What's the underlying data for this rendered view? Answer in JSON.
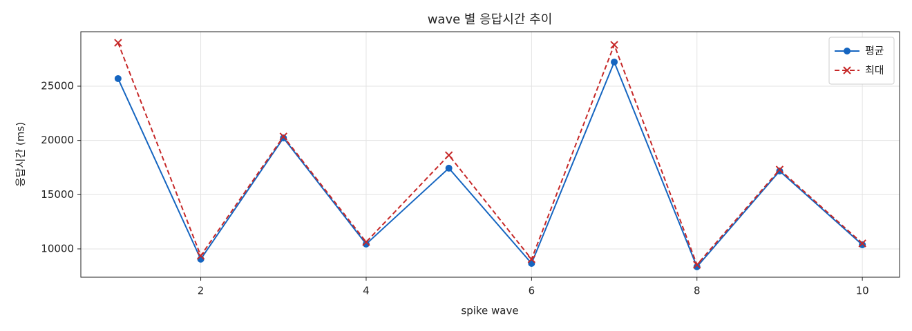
{
  "chart_data": {
    "type": "line",
    "title": "wave 별 응답시간 추이",
    "x_label": "spike wave",
    "y_label": "응답시간 (ms)",
    "x": [
      1,
      2,
      3,
      4,
      5,
      6,
      7,
      8,
      9,
      10
    ],
    "series": [
      {
        "name": "평균",
        "color": "#1565c0",
        "linestyle": "solid",
        "marker": "o",
        "values": [
          25700,
          9050,
          20230,
          10445,
          17440,
          8665,
          27225,
          8350,
          17180,
          10380
        ]
      },
      {
        "name": "최대",
        "color": "#c62828",
        "linestyle": "dashed",
        "marker": "x",
        "values": [
          29000,
          9365,
          20360,
          10635,
          18640,
          9050,
          28810,
          8540,
          17310,
          10510
        ]
      }
    ],
    "xlim": [
      0.55,
      10.45
    ],
    "ylim": [
      7390,
      30020
    ],
    "xticks": [
      2,
      4,
      6,
      8,
      10
    ],
    "yticks": [
      10000,
      15000,
      20000,
      25000
    ],
    "grid": true,
    "legend": "upper right"
  }
}
